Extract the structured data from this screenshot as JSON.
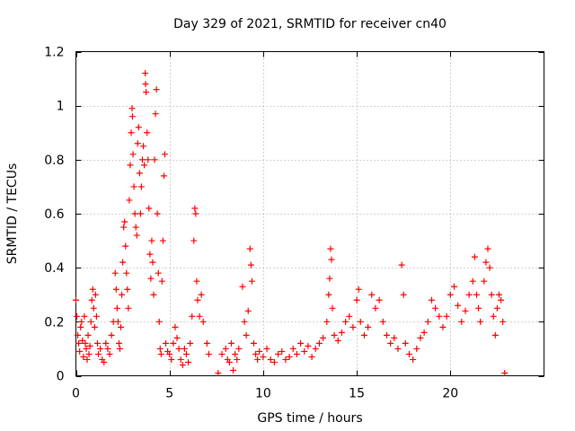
{
  "chart_data": {
    "type": "scatter",
    "title": "Day 329 of 2021, SRMTID for receiver cn40",
    "xlabel": "GPS time / hours",
    "ylabel": "SRMTID / TECUs",
    "xlim": [
      0,
      25
    ],
    "ylim": [
      0,
      1.2
    ],
    "xticks": [
      0,
      5,
      10,
      15,
      20
    ],
    "xtick_labels": [
      "0",
      "5",
      "10",
      "15",
      "20"
    ],
    "yticks": [
      0,
      0.2,
      0.4,
      0.6,
      0.8,
      1,
      1.2
    ],
    "ytick_labels": [
      "0",
      "0.2",
      "0.4",
      "0.6",
      "0.8",
      "1",
      "1.2"
    ],
    "grid": true,
    "marker": "+",
    "series": [
      {
        "name": "SRMTID",
        "color": "#ff0000",
        "points": [
          [
            0.0,
            0.28
          ],
          [
            0.05,
            0.22
          ],
          [
            0.1,
            0.15
          ],
          [
            0.15,
            0.12
          ],
          [
            0.2,
            0.09
          ],
          [
            0.25,
            0.18
          ],
          [
            0.3,
            0.2
          ],
          [
            0.35,
            0.13
          ],
          [
            0.4,
            0.07
          ],
          [
            0.45,
            0.22
          ],
          [
            0.5,
            0.12
          ],
          [
            0.55,
            0.1
          ],
          [
            0.6,
            0.06
          ],
          [
            0.65,
            0.15
          ],
          [
            0.7,
            0.08
          ],
          [
            0.75,
            0.11
          ],
          [
            0.8,
            0.2
          ],
          [
            0.85,
            0.28
          ],
          [
            0.9,
            0.32
          ],
          [
            0.95,
            0.25
          ],
          [
            1.0,
            0.18
          ],
          [
            1.05,
            0.3
          ],
          [
            1.1,
            0.22
          ],
          [
            1.15,
            0.12
          ],
          [
            1.2,
            0.08
          ],
          [
            1.3,
            0.1
          ],
          [
            1.4,
            0.06
          ],
          [
            1.5,
            0.05
          ],
          [
            1.6,
            0.12
          ],
          [
            1.7,
            0.1
          ],
          [
            1.8,
            0.08
          ],
          [
            1.9,
            0.15
          ],
          [
            2.0,
            0.2
          ],
          [
            2.1,
            0.38
          ],
          [
            2.15,
            0.32
          ],
          [
            2.2,
            0.25
          ],
          [
            2.25,
            0.2
          ],
          [
            2.3,
            0.12
          ],
          [
            2.35,
            0.1
          ],
          [
            2.4,
            0.18
          ],
          [
            2.45,
            0.3
          ],
          [
            2.5,
            0.42
          ],
          [
            2.55,
            0.55
          ],
          [
            2.6,
            0.57
          ],
          [
            2.65,
            0.48
          ],
          [
            2.7,
            0.38
          ],
          [
            2.75,
            0.32
          ],
          [
            2.8,
            0.25
          ],
          [
            2.85,
            0.65
          ],
          [
            2.9,
            0.78
          ],
          [
            2.95,
            0.9
          ],
          [
            3.0,
            0.99
          ],
          [
            3.02,
            0.96
          ],
          [
            3.05,
            0.82
          ],
          [
            3.1,
            0.7
          ],
          [
            3.15,
            0.6
          ],
          [
            3.2,
            0.55
          ],
          [
            3.25,
            0.52
          ],
          [
            3.3,
            0.86
          ],
          [
            3.35,
            0.92
          ],
          [
            3.4,
            0.75
          ],
          [
            3.45,
            0.6
          ],
          [
            3.5,
            0.7
          ],
          [
            3.55,
            0.8
          ],
          [
            3.6,
            0.85
          ],
          [
            3.65,
            0.78
          ],
          [
            3.7,
            1.12
          ],
          [
            3.72,
            1.08
          ],
          [
            3.75,
            1.05
          ],
          [
            3.8,
            0.9
          ],
          [
            3.85,
            0.8
          ],
          [
            3.9,
            0.62
          ],
          [
            3.95,
            0.45
          ],
          [
            4.0,
            0.36
          ],
          [
            4.05,
            0.5
          ],
          [
            4.1,
            0.42
          ],
          [
            4.15,
            0.3
          ],
          [
            4.2,
            0.8
          ],
          [
            4.25,
            0.97
          ],
          [
            4.3,
            1.06
          ],
          [
            4.35,
            0.6
          ],
          [
            4.4,
            0.38
          ],
          [
            4.45,
            0.2
          ],
          [
            4.5,
            0.1
          ],
          [
            4.55,
            0.08
          ],
          [
            4.6,
            0.35
          ],
          [
            4.65,
            0.5
          ],
          [
            4.7,
            0.74
          ],
          [
            4.75,
            0.82
          ],
          [
            4.8,
            0.12
          ],
          [
            4.9,
            0.09
          ],
          [
            5.0,
            0.08
          ],
          [
            5.1,
            0.06
          ],
          [
            5.2,
            0.12
          ],
          [
            5.3,
            0.18
          ],
          [
            5.4,
            0.14
          ],
          [
            5.5,
            0.1
          ],
          [
            5.6,
            0.06
          ],
          [
            5.7,
            0.04
          ],
          [
            5.8,
            0.1
          ],
          [
            5.9,
            0.08
          ],
          [
            6.0,
            0.05
          ],
          [
            6.1,
            0.12
          ],
          [
            6.2,
            0.22
          ],
          [
            6.3,
            0.5
          ],
          [
            6.35,
            0.62
          ],
          [
            6.4,
            0.6
          ],
          [
            6.45,
            0.35
          ],
          [
            6.5,
            0.28
          ],
          [
            6.6,
            0.22
          ],
          [
            6.7,
            0.3
          ],
          [
            6.8,
            0.2
          ],
          [
            7.0,
            0.12
          ],
          [
            7.1,
            0.08
          ],
          [
            7.6,
            0.01
          ],
          [
            7.8,
            0.08
          ],
          [
            8.0,
            0.1
          ],
          [
            8.1,
            0.06
          ],
          [
            8.2,
            0.05
          ],
          [
            8.3,
            0.12
          ],
          [
            8.4,
            0.02
          ],
          [
            8.5,
            0.08
          ],
          [
            8.6,
            0.06
          ],
          [
            8.7,
            0.1
          ],
          [
            8.9,
            0.33
          ],
          [
            9.0,
            0.2
          ],
          [
            9.1,
            0.15
          ],
          [
            9.2,
            0.24
          ],
          [
            9.3,
            0.47
          ],
          [
            9.35,
            0.41
          ],
          [
            9.4,
            0.35
          ],
          [
            9.5,
            0.12
          ],
          [
            9.6,
            0.08
          ],
          [
            9.7,
            0.06
          ],
          [
            9.8,
            0.09
          ],
          [
            10.0,
            0.07
          ],
          [
            10.2,
            0.1
          ],
          [
            10.4,
            0.06
          ],
          [
            10.6,
            0.05
          ],
          [
            10.8,
            0.08
          ],
          [
            11.0,
            0.09
          ],
          [
            11.2,
            0.06
          ],
          [
            11.4,
            0.07
          ],
          [
            11.6,
            0.1
          ],
          [
            11.8,
            0.08
          ],
          [
            12.0,
            0.12
          ],
          [
            12.2,
            0.09
          ],
          [
            12.4,
            0.11
          ],
          [
            12.6,
            0.07
          ],
          [
            12.8,
            0.1
          ],
          [
            13.0,
            0.12
          ],
          [
            13.2,
            0.14
          ],
          [
            13.4,
            0.2
          ],
          [
            13.5,
            0.3
          ],
          [
            13.55,
            0.36
          ],
          [
            13.6,
            0.47
          ],
          [
            13.65,
            0.43
          ],
          [
            13.7,
            0.25
          ],
          [
            13.8,
            0.15
          ],
          [
            14.0,
            0.13
          ],
          [
            14.2,
            0.16
          ],
          [
            14.4,
            0.2
          ],
          [
            14.6,
            0.22
          ],
          [
            14.8,
            0.18
          ],
          [
            15.0,
            0.28
          ],
          [
            15.1,
            0.32
          ],
          [
            15.2,
            0.2
          ],
          [
            15.4,
            0.15
          ],
          [
            15.6,
            0.18
          ],
          [
            15.8,
            0.3
          ],
          [
            16.0,
            0.25
          ],
          [
            16.2,
            0.28
          ],
          [
            16.4,
            0.2
          ],
          [
            16.6,
            0.15
          ],
          [
            16.8,
            0.12
          ],
          [
            17.0,
            0.14
          ],
          [
            17.2,
            0.1
          ],
          [
            17.4,
            0.41
          ],
          [
            17.5,
            0.3
          ],
          [
            17.6,
            0.12
          ],
          [
            17.8,
            0.08
          ],
          [
            18.0,
            0.06
          ],
          [
            18.2,
            0.1
          ],
          [
            18.4,
            0.14
          ],
          [
            18.6,
            0.16
          ],
          [
            18.8,
            0.2
          ],
          [
            19.0,
            0.28
          ],
          [
            19.2,
            0.25
          ],
          [
            19.4,
            0.22
          ],
          [
            19.6,
            0.18
          ],
          [
            19.8,
            0.22
          ],
          [
            20.0,
            0.3
          ],
          [
            20.2,
            0.33
          ],
          [
            20.4,
            0.26
          ],
          [
            20.6,
            0.2
          ],
          [
            20.8,
            0.24
          ],
          [
            21.0,
            0.3
          ],
          [
            21.2,
            0.35
          ],
          [
            21.3,
            0.44
          ],
          [
            21.4,
            0.3
          ],
          [
            21.5,
            0.25
          ],
          [
            21.6,
            0.2
          ],
          [
            21.8,
            0.35
          ],
          [
            21.9,
            0.42
          ],
          [
            22.0,
            0.47
          ],
          [
            22.1,
            0.4
          ],
          [
            22.2,
            0.3
          ],
          [
            22.3,
            0.22
          ],
          [
            22.4,
            0.15
          ],
          [
            22.5,
            0.25
          ],
          [
            22.6,
            0.3
          ],
          [
            22.7,
            0.28
          ],
          [
            22.8,
            0.2
          ],
          [
            22.9,
            0.01
          ]
        ]
      }
    ]
  }
}
